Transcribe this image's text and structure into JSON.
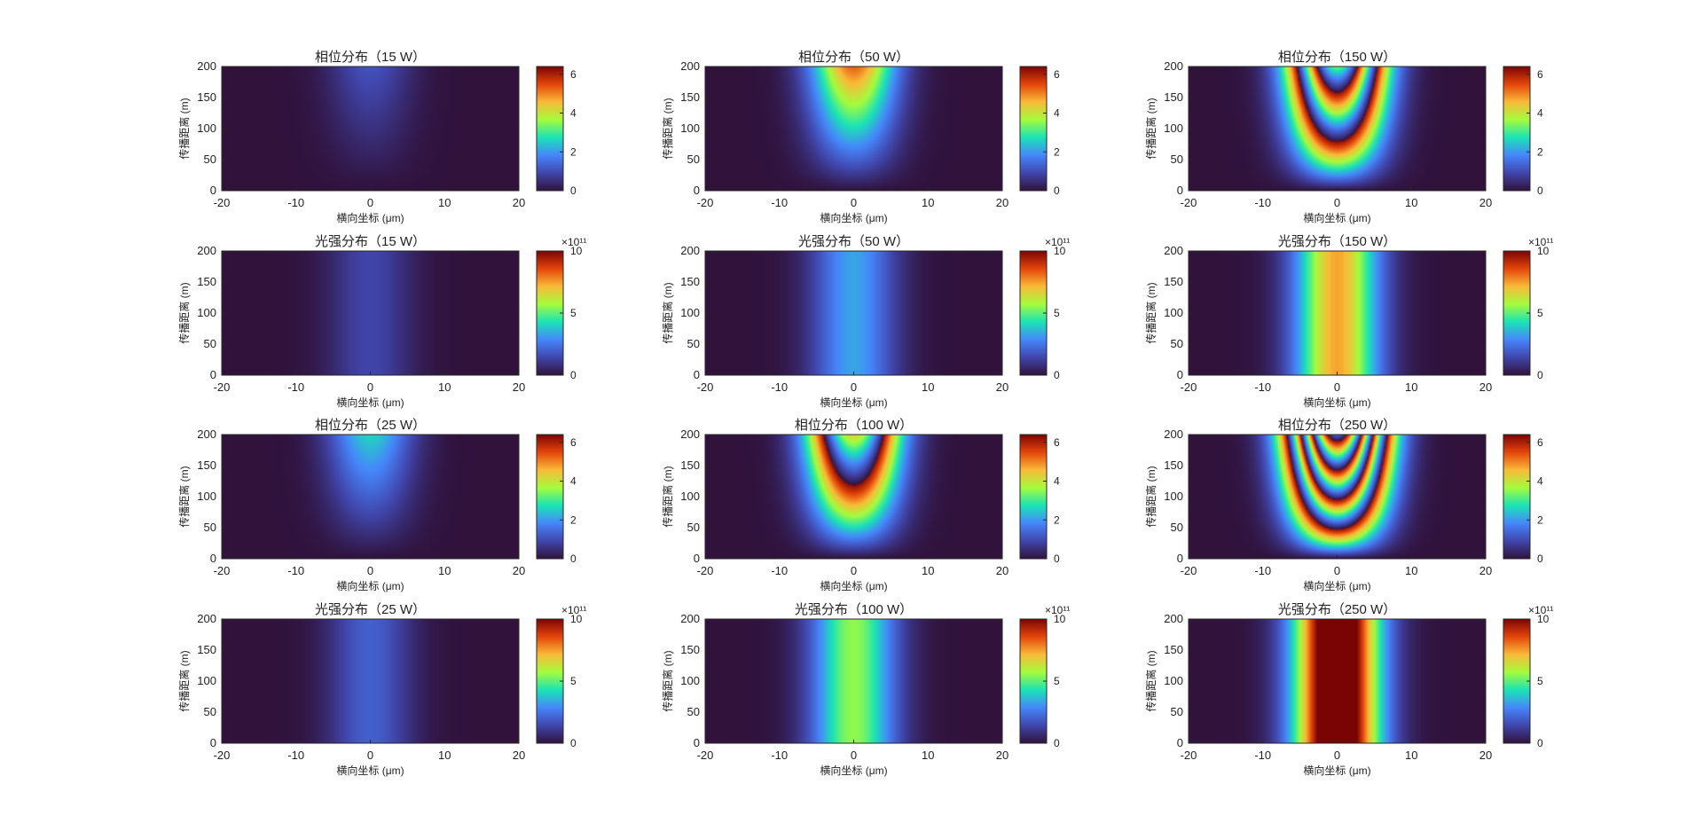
{
  "figure": {
    "background": "#ffffff"
  },
  "colormap": {
    "name": "turbo",
    "stops": [
      "#30123b",
      "#4146ac",
      "#4686fb",
      "#1ae4b6",
      "#a4fc3c",
      "#f9ba38",
      "#e4460a",
      "#7a0403"
    ]
  },
  "chart_data": [
    {
      "type": "heatmap",
      "kind": "phase",
      "title": "相位分布（15 W）",
      "xlabel": "横向坐标 (μm)",
      "ylabel": "传播距离 (m)",
      "xlim": [
        -20,
        20
      ],
      "ylim": [
        0,
        200
      ],
      "xticks": [
        "-20",
        "-10",
        "0",
        "10",
        "20"
      ],
      "yticks": [
        "0",
        "50",
        "100",
        "150",
        "200"
      ],
      "colorbar": {
        "range": [
          0,
          6.4
        ],
        "ticks": [
          "0",
          "2",
          "4",
          "6"
        ],
        "exponent": ""
      },
      "max_phase": 1.1,
      "peak_intensity": 0
    },
    {
      "type": "heatmap",
      "kind": "phase",
      "title": "相位分布（50 W）",
      "xlabel": "横向坐标 (μm)",
      "ylabel": "传播距离 (m)",
      "xlim": [
        -20,
        20
      ],
      "ylim": [
        0,
        200
      ],
      "xticks": [
        "-20",
        "-10",
        "0",
        "10",
        "20"
      ],
      "yticks": [
        "0",
        "50",
        "100",
        "150",
        "200"
      ],
      "colorbar": {
        "range": [
          0,
          6.4
        ],
        "ticks": [
          "0",
          "2",
          "4",
          "6"
        ],
        "exponent": ""
      },
      "max_phase": 5.3,
      "peak_intensity": 0
    },
    {
      "type": "heatmap",
      "kind": "phase",
      "title": "相位分布（150 W）",
      "xlabel": "横向坐标 (μm)",
      "ylabel": "传播距离 (m)",
      "xlim": [
        -20,
        20
      ],
      "ylim": [
        0,
        200
      ],
      "xticks": [
        "-20",
        "-10",
        "0",
        "10",
        "20"
      ],
      "yticks": [
        "0",
        "50",
        "100",
        "150",
        "200"
      ],
      "colorbar": {
        "range": [
          0,
          6.4
        ],
        "ticks": [
          "0",
          "2",
          "4",
          "6"
        ],
        "exponent": ""
      },
      "max_phase": 15.9,
      "peak_intensity": 0
    },
    {
      "type": "heatmap",
      "kind": "intensity",
      "title": "光强分布（15 W）",
      "xlabel": "横向坐标 (μm)",
      "ylabel": "传播距离 (m)",
      "xlim": [
        -20,
        20
      ],
      "ylim": [
        0,
        200
      ],
      "xticks": [
        "-20",
        "-10",
        "0",
        "10",
        "20"
      ],
      "yticks": [
        "0",
        "50",
        "100",
        "150",
        "200"
      ],
      "colorbar": {
        "range": [
          0,
          10
        ],
        "ticks": [
          "0",
          "5",
          "10"
        ],
        "exponent": "×10¹¹"
      },
      "max_phase": 0,
      "peak_intensity": 1.4
    },
    {
      "type": "heatmap",
      "kind": "intensity",
      "title": "光强分布（50 W）",
      "xlabel": "横向坐标 (μm)",
      "ylabel": "传播距离 (m)",
      "xlim": [
        -20,
        20
      ],
      "ylim": [
        0,
        200
      ],
      "xticks": [
        "-20",
        "-10",
        "0",
        "10",
        "20"
      ],
      "yticks": [
        "0",
        "50",
        "100",
        "150",
        "200"
      ],
      "colorbar": {
        "range": [
          0,
          10
        ],
        "ticks": [
          "0",
          "5",
          "10"
        ],
        "exponent": "×10¹¹"
      },
      "max_phase": 0,
      "peak_intensity": 3.3
    },
    {
      "type": "heatmap",
      "kind": "intensity",
      "title": "光强分布（150 W）",
      "xlabel": "横向坐标 (μm)",
      "ylabel": "传播距离 (m)",
      "xlim": [
        -20,
        20
      ],
      "ylim": [
        0,
        200
      ],
      "xticks": [
        "-20",
        "-10",
        "0",
        "10",
        "20"
      ],
      "yticks": [
        "0",
        "50",
        "100",
        "150",
        "200"
      ],
      "colorbar": {
        "range": [
          0,
          10
        ],
        "ticks": [
          "0",
          "5",
          "10"
        ],
        "exponent": "×10¹¹"
      },
      "max_phase": 0,
      "peak_intensity": 7.4
    },
    {
      "type": "heatmap",
      "kind": "phase",
      "title": "相位分布（25 W）",
      "xlabel": "横向坐标 (μm)",
      "ylabel": "传播距离 (m)",
      "xlim": [
        -20,
        20
      ],
      "ylim": [
        0,
        200
      ],
      "xticks": [
        "-20",
        "-10",
        "0",
        "10",
        "20"
      ],
      "yticks": [
        "0",
        "50",
        "100",
        "150",
        "200"
      ],
      "colorbar": {
        "range": [
          0,
          6.4
        ],
        "ticks": [
          "0",
          "2",
          "4",
          "6"
        ],
        "exponent": ""
      },
      "max_phase": 2.6,
      "peak_intensity": 0
    },
    {
      "type": "heatmap",
      "kind": "phase",
      "title": "相位分布（100 W）",
      "xlabel": "横向坐标 (μm)",
      "ylabel": "传播距离 (m)",
      "xlim": [
        -20,
        20
      ],
      "ylim": [
        0,
        200
      ],
      "xticks": [
        "-20",
        "-10",
        "0",
        "10",
        "20"
      ],
      "yticks": [
        "0",
        "50",
        "100",
        "150",
        "200"
      ],
      "colorbar": {
        "range": [
          0,
          6.4
        ],
        "ticks": [
          "0",
          "2",
          "4",
          "6"
        ],
        "exponent": ""
      },
      "max_phase": 10.6,
      "peak_intensity": 0
    },
    {
      "type": "heatmap",
      "kind": "phase",
      "title": "相位分布（250 W）",
      "xlabel": "横向坐标 (μm)",
      "ylabel": "传播距离 (m)",
      "xlim": [
        -20,
        20
      ],
      "ylim": [
        0,
        200
      ],
      "xticks": [
        "-20",
        "-10",
        "0",
        "10",
        "20"
      ],
      "yticks": [
        "0",
        "50",
        "100",
        "150",
        "200"
      ],
      "colorbar": {
        "range": [
          0,
          6.4
        ],
        "ticks": [
          "0",
          "2",
          "4",
          "6"
        ],
        "exponent": ""
      },
      "max_phase": 26.5,
      "peak_intensity": 0
    },
    {
      "type": "heatmap",
      "kind": "intensity",
      "title": "光强分布（25 W）",
      "xlabel": "横向坐标 (μm)",
      "ylabel": "传播距离 (m)",
      "xlim": [
        -20,
        20
      ],
      "ylim": [
        0,
        200
      ],
      "xticks": [
        "-20",
        "-10",
        "0",
        "10",
        "20"
      ],
      "yticks": [
        "0",
        "50",
        "100",
        "150",
        "200"
      ],
      "colorbar": {
        "range": [
          0,
          10
        ],
        "ticks": [
          "0",
          "5",
          "10"
        ],
        "exponent": "×10¹¹"
      },
      "max_phase": 0,
      "peak_intensity": 2.0
    },
    {
      "type": "heatmap",
      "kind": "intensity",
      "title": "光强分布（100 W）",
      "xlabel": "横向坐标 (μm)",
      "ylabel": "传播距离 (m)",
      "xlim": [
        -20,
        20
      ],
      "ylim": [
        0,
        200
      ],
      "xticks": [
        "-20",
        "-10",
        "0",
        "10",
        "20"
      ],
      "yticks": [
        "0",
        "50",
        "100",
        "150",
        "200"
      ],
      "colorbar": {
        "range": [
          0,
          10
        ],
        "ticks": [
          "0",
          "5",
          "10"
        ],
        "exponent": "×10¹¹"
      },
      "max_phase": 0,
      "peak_intensity": 5.5
    },
    {
      "type": "heatmap",
      "kind": "intensity",
      "title": "光强分布（250 W）",
      "xlabel": "横向坐标 (μm)",
      "ylabel": "传播距离 (m)",
      "xlim": [
        -20,
        20
      ],
      "ylim": [
        0,
        200
      ],
      "xticks": [
        "-20",
        "-10",
        "0",
        "10",
        "20"
      ],
      "yticks": [
        "0",
        "50",
        "100",
        "150",
        "200"
      ],
      "colorbar": {
        "range": [
          0,
          10
        ],
        "ticks": [
          "0",
          "5",
          "10"
        ],
        "exponent": "×10¹¹"
      },
      "max_phase": 0,
      "peak_intensity": 12.5
    }
  ]
}
